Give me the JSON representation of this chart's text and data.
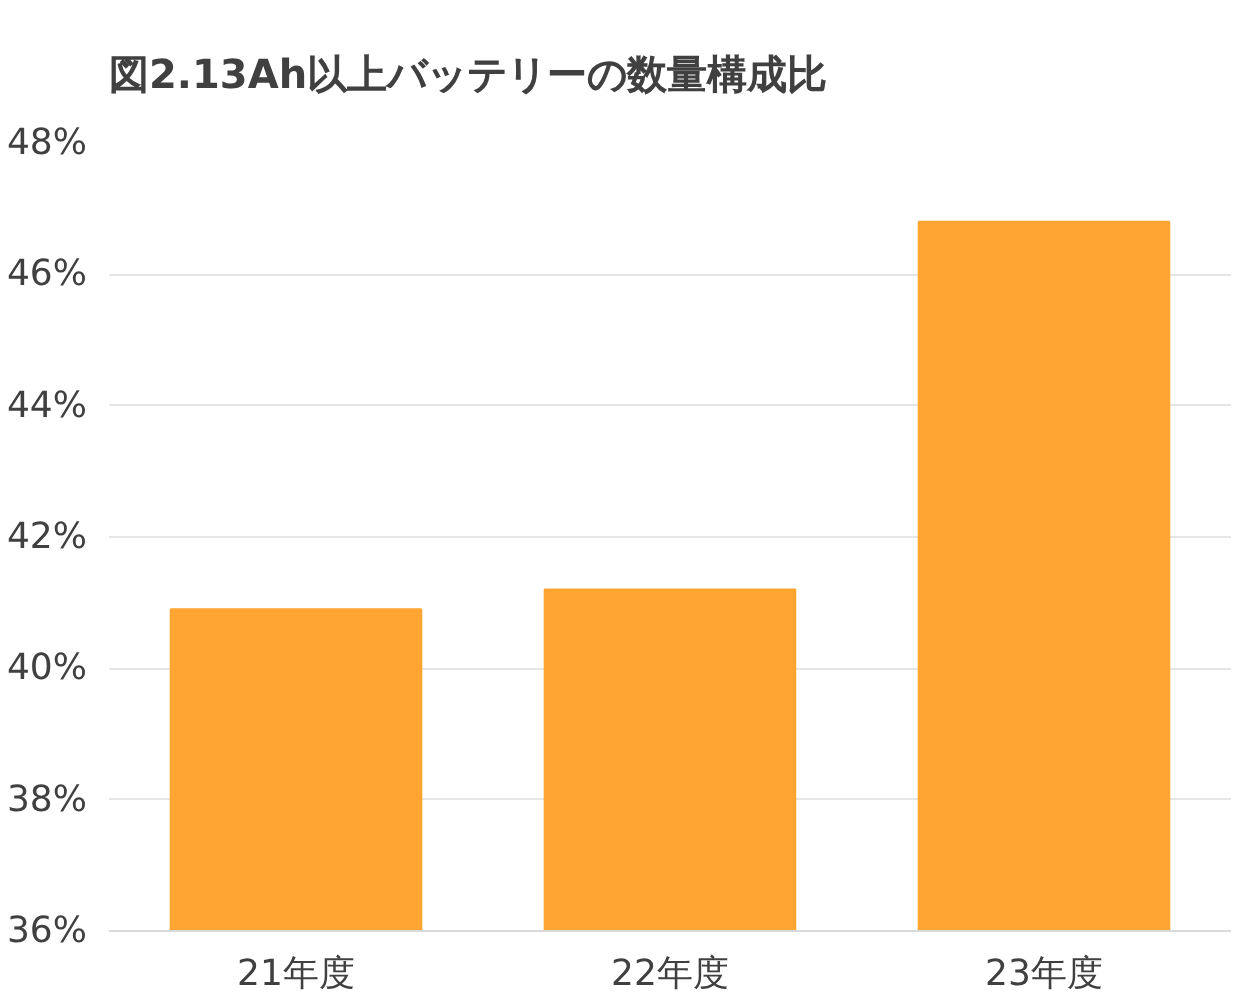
{
  "chart_data": {
    "type": "bar",
    "title": "図2.13Ah以上バッテリーの数量構成比",
    "categories": [
      "21年度",
      "22年度",
      "23年度"
    ],
    "values": [
      40.9,
      41.2,
      46.8
    ],
    "color": "#ffa531",
    "ylim": [
      36,
      48
    ],
    "yticks": [
      {
        "value": 36,
        "label": "36%"
      },
      {
        "value": 38,
        "label": "38%"
      },
      {
        "value": 40,
        "label": "40%"
      },
      {
        "value": 42,
        "label": "42%"
      },
      {
        "value": 44,
        "label": "44%"
      },
      {
        "value": 46,
        "label": "46%"
      },
      {
        "value": 48,
        "label": "48%"
      }
    ],
    "grid": "y"
  }
}
